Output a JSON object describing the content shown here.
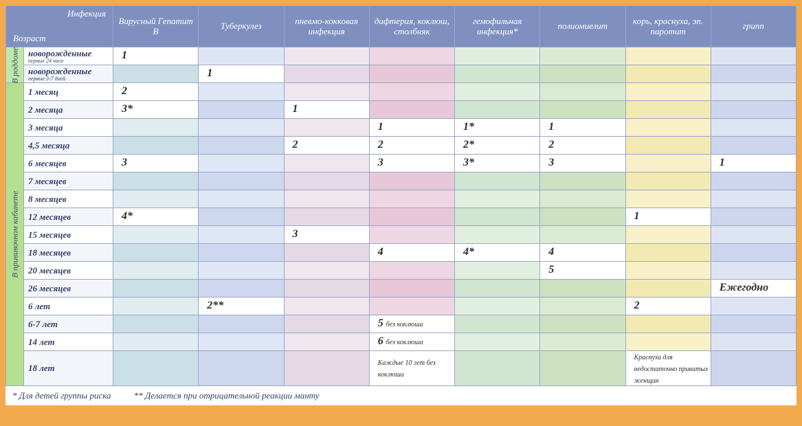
{
  "header": {
    "corner_infection": "Инфекция",
    "corner_age": "Возраст",
    "columns": [
      "Вирусный Гепатит B",
      "Туберкулез",
      "пневмо-кокковая инфекция",
      "дифтерия, коклюш, столбняк",
      "гемофильная инфекция*",
      "полиомиелит",
      "корь, краснуха, эп. паротит",
      "грипп"
    ]
  },
  "side": {
    "maternity": "В роддоме",
    "clinic": "В прививочном кабинете"
  },
  "rows": [
    {
      "age": "новорожденные",
      "sub": "первые 24 часа",
      "vals": [
        "1",
        "",
        "",
        "",
        "",
        "",
        "",
        ""
      ],
      "group": 0
    },
    {
      "age": "новорожденные",
      "sub": "первые 3-7 дней",
      "vals": [
        "",
        "1",
        "",
        "",
        "",
        "",
        "",
        ""
      ],
      "group": 0
    },
    {
      "age": "1 месяц",
      "vals": [
        "2",
        "",
        "",
        "",
        "",
        "",
        "",
        ""
      ],
      "group": 1
    },
    {
      "age": "2 месяца",
      "vals": [
        "3*",
        "",
        "1",
        "",
        "",
        "",
        "",
        ""
      ],
      "group": 1
    },
    {
      "age": "3 месяца",
      "vals": [
        "",
        "",
        "",
        "1",
        "1*",
        "1",
        "",
        ""
      ],
      "group": 1
    },
    {
      "age": "4,5 месяца",
      "vals": [
        "",
        "",
        "2",
        "2",
        "2*",
        "2",
        "",
        ""
      ],
      "group": 1
    },
    {
      "age": "6 месяцев",
      "vals": [
        "3",
        "",
        "",
        "3",
        "3*",
        "3",
        "",
        "1"
      ],
      "group": 1
    },
    {
      "age": "7 месяцев",
      "vals": [
        "",
        "",
        "",
        "",
        "",
        "",
        "",
        ""
      ],
      "group": 1
    },
    {
      "age": "8 месяцев",
      "vals": [
        "",
        "",
        "",
        "",
        "",
        "",
        "",
        ""
      ],
      "group": 1
    },
    {
      "age": "12 месяцев",
      "vals": [
        "4*",
        "",
        "",
        "",
        "",
        "",
        "1",
        ""
      ],
      "group": 1
    },
    {
      "age": "15 месяцев",
      "vals": [
        "",
        "",
        "3",
        "",
        "",
        "",
        "",
        ""
      ],
      "group": 1
    },
    {
      "age": "18 месяцев",
      "vals": [
        "",
        "",
        "",
        "4",
        "4*",
        "4",
        "",
        ""
      ],
      "group": 1
    },
    {
      "age": "20 месяцев",
      "vals": [
        "",
        "",
        "",
        "",
        "",
        "5",
        "",
        ""
      ],
      "group": 1
    },
    {
      "age": "26 месяцев",
      "vals": [
        "",
        "",
        "",
        "",
        "",
        "",
        "",
        "Ежегодно"
      ],
      "group": 1
    },
    {
      "age": "6 лет",
      "vals": [
        "",
        "2**",
        "",
        "",
        "",
        "",
        "2",
        ""
      ],
      "group": 1
    },
    {
      "age": "6-7 лет",
      "vals": [
        "",
        "",
        "",
        "5 <span class=\"small\">без коклюша</span>",
        "",
        "",
        "",
        ""
      ],
      "group": 1
    },
    {
      "age": "14 лет",
      "vals": [
        "",
        "",
        "",
        "6 <span class=\"small\">без коклюша</span>",
        "",
        "",
        "",
        ""
      ],
      "group": 1
    },
    {
      "age": "18 лет",
      "tall": true,
      "vals": [
        "",
        "",
        "",
        "<span class=\"small\">Каждые 10 лет без коклюша</span>",
        "",
        "",
        "<span class=\"small\">Краснуха для недостаточно привитых женщин</span>",
        ""
      ],
      "group": 1
    }
  ],
  "footer": {
    "note1": "* Для детей группы риска",
    "note2": "** Делается при отрицательной реакции манту"
  },
  "styling": {
    "page_bg": "#f3a94d",
    "header_bg": "#7f8fc0",
    "header_fg": "#ffffff",
    "grid_color": "#9aa7c4",
    "text_color": "#37406b",
    "side_bg": "#b9e69f",
    "col_tints": [
      "#e0ecf0",
      "#dfe6f5",
      "#efe6ee",
      "#efd6e3",
      "#e0efe0",
      "#dbebd1",
      "#f8f0c7",
      "#dfe4f4"
    ],
    "col_tints_alt": [
      "#cbdfe6",
      "#cdd7ee",
      "#e5d9e6",
      "#e7c7d8",
      "#d0e6d0",
      "#cde2c1",
      "#f3e9b2",
      "#ced6ee"
    ]
  }
}
